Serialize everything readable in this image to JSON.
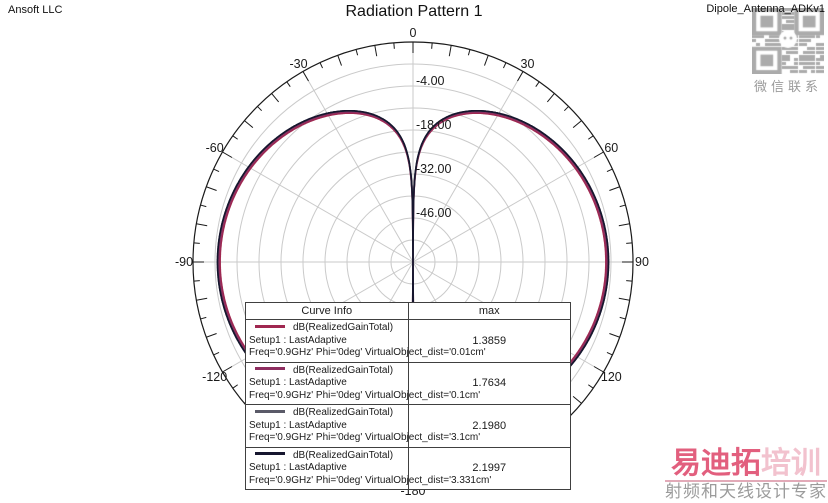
{
  "header": {
    "left": "Ansoft LLC",
    "title": "Radiation Pattern 1",
    "right": "Dipole_Antenna_ADKv1"
  },
  "legend": {
    "header_curve": "Curve Info",
    "header_max": "max"
  },
  "chart_data": {
    "type": "line",
    "layout": "polar",
    "title": "Radiation Pattern 1",
    "units": "dB",
    "radial_range_db": [
      -60,
      10
    ],
    "radial_grid_step_db": 7,
    "radial_ticks": [
      {
        "db": -4,
        "label": "-4.00"
      },
      {
        "db": -18,
        "label": "-18.00"
      },
      {
        "db": -32,
        "label": "-32.00"
      },
      {
        "db": -46,
        "label": "-46.00"
      }
    ],
    "angle_labels": [
      {
        "deg": 0,
        "label": "0"
      },
      {
        "deg": 30,
        "label": "30"
      },
      {
        "deg": 60,
        "label": "60"
      },
      {
        "deg": 90,
        "label": "90"
      },
      {
        "deg": 120,
        "label": "120"
      },
      {
        "deg": 180,
        "label": "-180"
      },
      {
        "deg": 240,
        "label": "-120"
      },
      {
        "deg": 270,
        "label": "-90"
      },
      {
        "deg": 300,
        "label": "-60"
      },
      {
        "deg": 330,
        "label": "-30"
      }
    ],
    "angle_tick_step_deg": 5,
    "spoke_step_deg": 30,
    "pattern_model": "half-wave dipole: G(theta) = max_db + 20*log10(|cos(pi/2*cos(theta))/sin(theta)|)",
    "series": [
      {
        "label": "dB(RealizedGainTotal)",
        "setup": "Setup1 : LastAdaptive",
        "variation": "Freq='0.9GHz' Phi='0deg' VirtualObject_dist='0.01cm'",
        "max": 1.3859,
        "max_label": "1.3859",
        "color": "#a02850"
      },
      {
        "label": "dB(RealizedGainTotal)",
        "setup": "Setup1 : LastAdaptive",
        "variation": "Freq='0.9GHz' Phi='0deg' VirtualObject_dist='0.1cm'",
        "max": 1.7634,
        "max_label": "1.7634",
        "color": "#8e2e60"
      },
      {
        "label": "dB(RealizedGainTotal)",
        "setup": "Setup1 : LastAdaptive",
        "variation": "Freq='0.9GHz' Phi='0deg' VirtualObject_dist='3.1cm'",
        "max": 2.198,
        "max_label": "2.1980",
        "color": "#5a5a68"
      },
      {
        "label": "dB(RealizedGainTotal)",
        "setup": "Setup1 : LastAdaptive",
        "variation": "Freq='0.9GHz' Phi='0deg' VirtualObject_dist='3.331cm'",
        "max": 2.1997,
        "max_label": "2.1997",
        "color": "#16162e"
      }
    ]
  },
  "watermarks": {
    "qr_caption": "微信联系",
    "brand_main_strong": "易迪拓",
    "brand_main_light": "培训",
    "brand_sub": "射频和天线设计专家"
  },
  "colors": {
    "grid": "#cacaca",
    "outline": "#1a1a1a",
    "background": "#ffffff"
  }
}
